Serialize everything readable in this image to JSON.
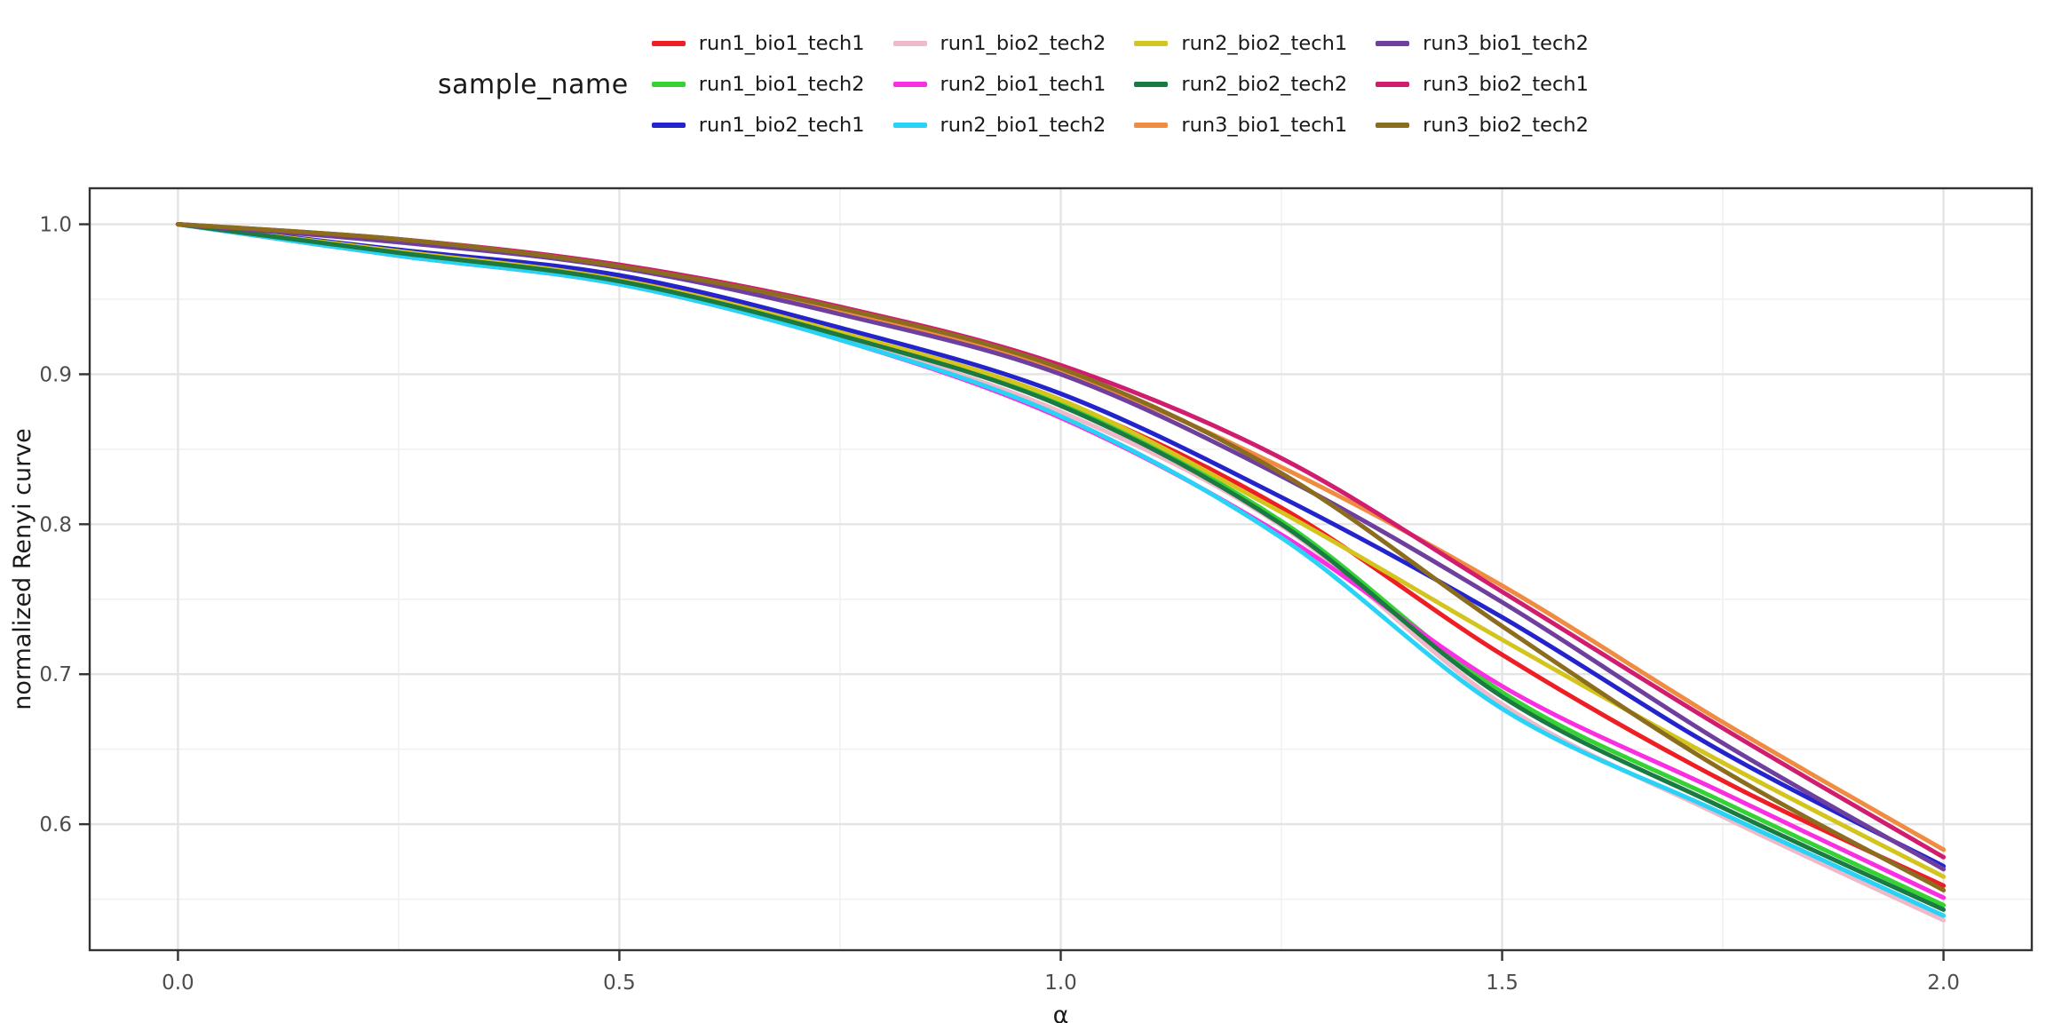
{
  "chart_data": {
    "type": "line",
    "title": "",
    "legend_title": "sample_name",
    "xlabel": "α",
    "ylabel": "normalized Renyi curve",
    "xlim": [
      -0.1,
      2.1
    ],
    "ylim": [
      0.516,
      1.024
    ],
    "grid": true,
    "legend_position": "top-center",
    "x_ticks": [
      0.0,
      0.5,
      1.0,
      1.5,
      2.0
    ],
    "x_tick_labels": [
      "0.0",
      "0.5",
      "1.0",
      "1.5",
      "2.0"
    ],
    "y_ticks": [
      1.0,
      0.9,
      0.8,
      0.7,
      0.6
    ],
    "y_tick_labels": [
      "1.0",
      "0.9",
      "0.8",
      "0.7",
      "0.6"
    ],
    "x_minor_ticks": [
      0.25,
      0.75,
      1.25,
      1.75
    ],
    "y_minor_ticks": [
      0.95,
      0.85,
      0.75,
      0.65,
      0.55
    ],
    "x": [
      0.0,
      0.25,
      0.5,
      0.75,
      1.0,
      1.25,
      1.5,
      1.75,
      2.0
    ],
    "series": [
      {
        "name": "run1_bio1_tech1",
        "color": "#ed1e24",
        "values": [
          1.0,
          0.982,
          0.964,
          0.928,
          0.882,
          0.811,
          0.713,
          0.629,
          0.559
        ]
      },
      {
        "name": "run1_bio1_tech2",
        "color": "#35d135",
        "values": [
          1.0,
          0.981,
          0.962,
          0.926,
          0.88,
          0.802,
          0.688,
          0.615,
          0.546
        ]
      },
      {
        "name": "run1_bio2_tech1",
        "color": "#2424cd",
        "values": [
          1.0,
          0.983,
          0.966,
          0.931,
          0.887,
          0.818,
          0.738,
          0.648,
          0.572
        ]
      },
      {
        "name": "run1_bio2_tech2",
        "color": "#f0b9c9",
        "values": [
          1.0,
          0.98,
          0.961,
          0.924,
          0.875,
          0.799,
          0.68,
          0.605,
          0.536
        ]
      },
      {
        "name": "run2_bio1_tech1",
        "color": "#fb2fe2",
        "values": [
          1.0,
          0.979,
          0.96,
          0.923,
          0.871,
          0.793,
          0.692,
          0.621,
          0.551
        ]
      },
      {
        "name": "run2_bio1_tech2",
        "color": "#29d3f5",
        "values": [
          1.0,
          0.979,
          0.96,
          0.923,
          0.872,
          0.791,
          0.677,
          0.607,
          0.539
        ]
      },
      {
        "name": "run2_bio2_tech1",
        "color": "#d4c41e",
        "values": [
          1.0,
          0.982,
          0.963,
          0.928,
          0.883,
          0.808,
          0.723,
          0.641,
          0.565
        ]
      },
      {
        "name": "run2_bio2_tech2",
        "color": "#1a7a42",
        "values": [
          1.0,
          0.981,
          0.962,
          0.926,
          0.879,
          0.8,
          0.685,
          0.611,
          0.543
        ]
      },
      {
        "name": "run3_bio1_tech1",
        "color": "#f08c41",
        "values": [
          1.0,
          0.989,
          0.972,
          0.943,
          0.902,
          0.838,
          0.759,
          0.668,
          0.583
        ]
      },
      {
        "name": "run3_bio1_tech2",
        "color": "#6f3f9e",
        "values": [
          1.0,
          0.988,
          0.971,
          0.94,
          0.9,
          0.832,
          0.748,
          0.654,
          0.57
        ]
      },
      {
        "name": "run3_bio2_tech1",
        "color": "#d11d6e",
        "values": [
          1.0,
          0.99,
          0.973,
          0.945,
          0.906,
          0.844,
          0.755,
          0.664,
          0.578
        ]
      },
      {
        "name": "run3_bio2_tech2",
        "color": "#8c6d1f",
        "values": [
          1.0,
          0.99,
          0.972,
          0.944,
          0.904,
          0.834,
          0.732,
          0.636,
          0.556
        ]
      }
    ],
    "style": {
      "panel_border_color": "#333333",
      "major_grid_color": "#e4e4e4",
      "minor_grid_color": "#f1f1f1",
      "tick_color": "#333333",
      "tick_label_color": "#4d4d4d",
      "axis_title_color": "#1a1a1a",
      "line_width": 5
    }
  }
}
